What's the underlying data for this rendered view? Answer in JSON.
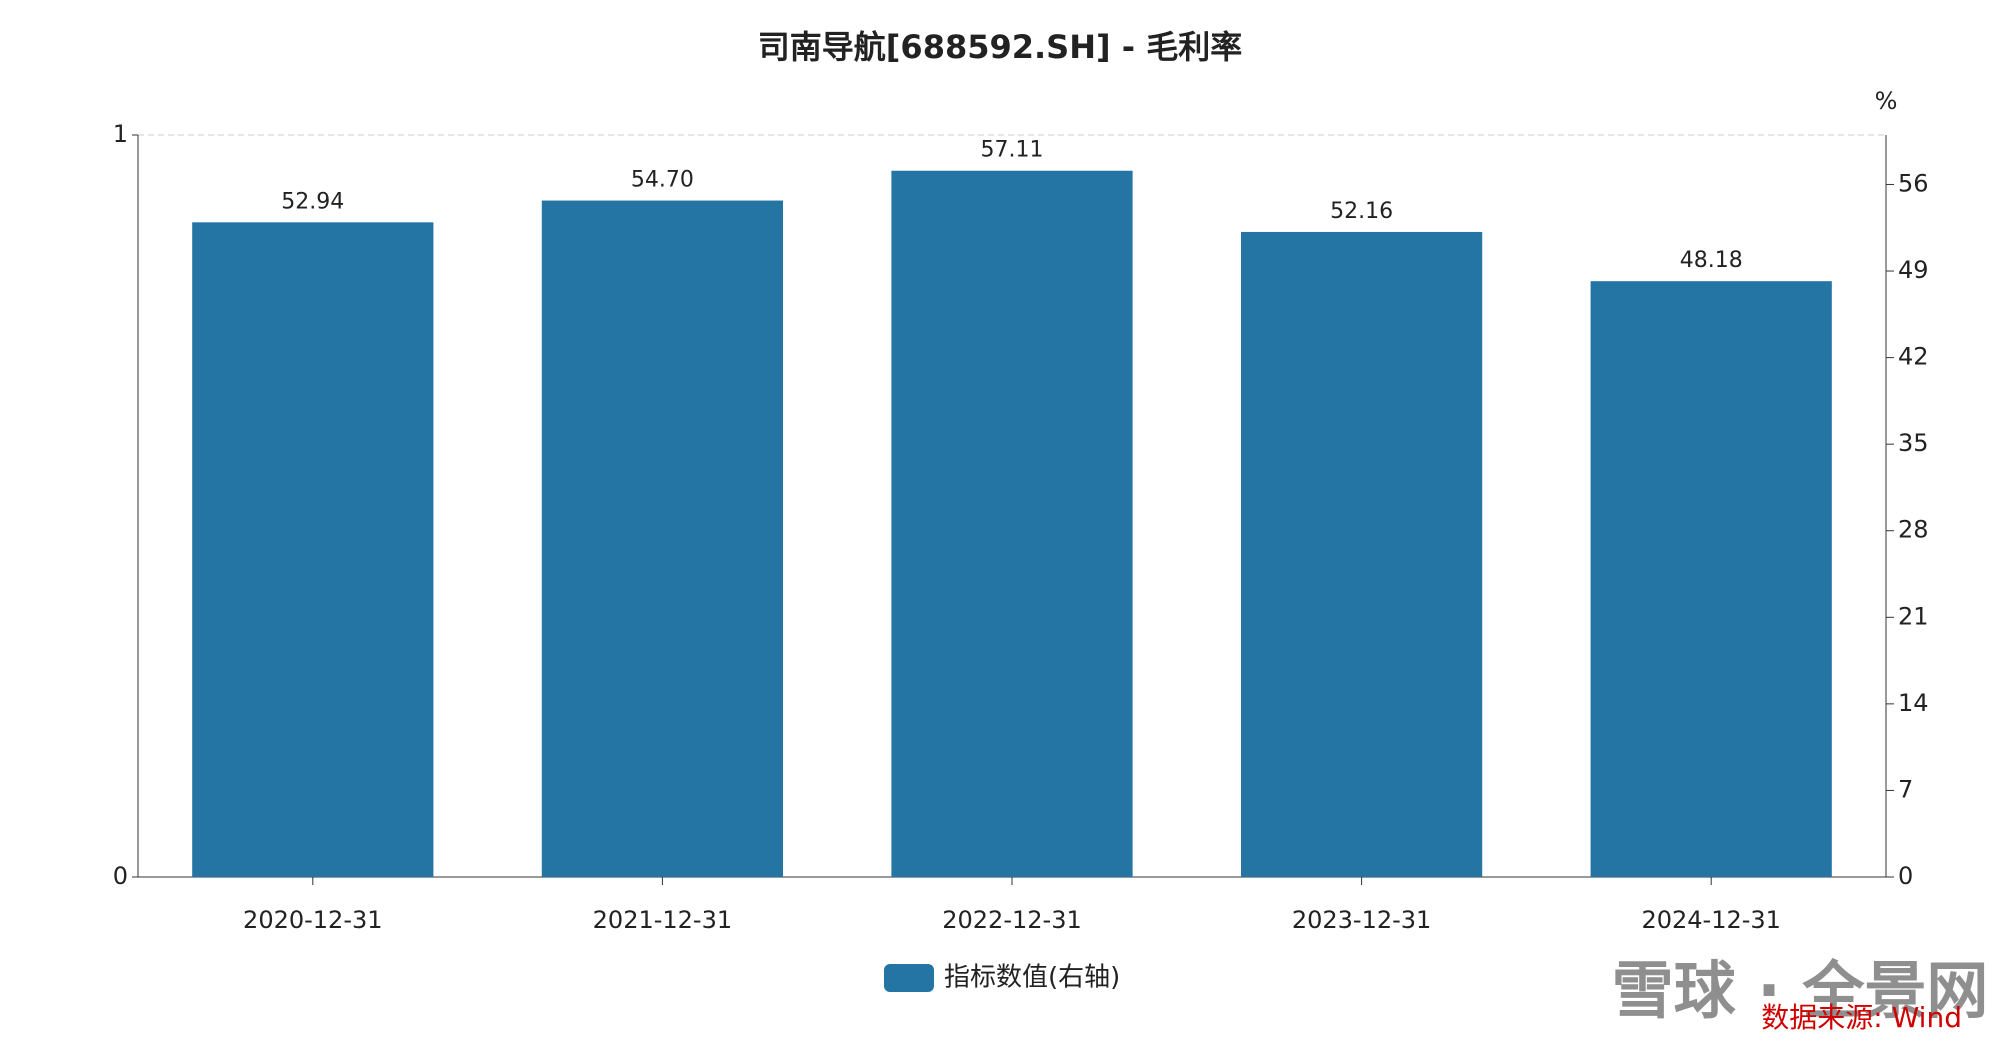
{
  "chart_data": {
    "type": "bar",
    "title": "司南导航[688592.SH] - 毛利率",
    "categories": [
      "2020-12-31",
      "2021-12-31",
      "2022-12-31",
      "2023-12-31",
      "2024-12-31"
    ],
    "series": [
      {
        "name": "指标数值(右轴)",
        "color": "#2475a3",
        "axis": "y2",
        "values": [
          52.94,
          54.7,
          57.11,
          52.16,
          48.18
        ],
        "value_labels": [
          "52.94",
          "54.70",
          "57.11",
          "52.16",
          "48.18"
        ]
      }
    ],
    "ylim": [
      0,
      1
    ],
    "yticks": [
      0,
      1
    ],
    "y2lim": [
      0,
      60
    ],
    "y2ticks": [
      0,
      7,
      14,
      21,
      28,
      35,
      42,
      49,
      56
    ],
    "y2_unit": "%",
    "grid": true,
    "legend": "bottom",
    "source": "数据来源: Wind",
    "watermark": "雪球 · 全景网"
  }
}
